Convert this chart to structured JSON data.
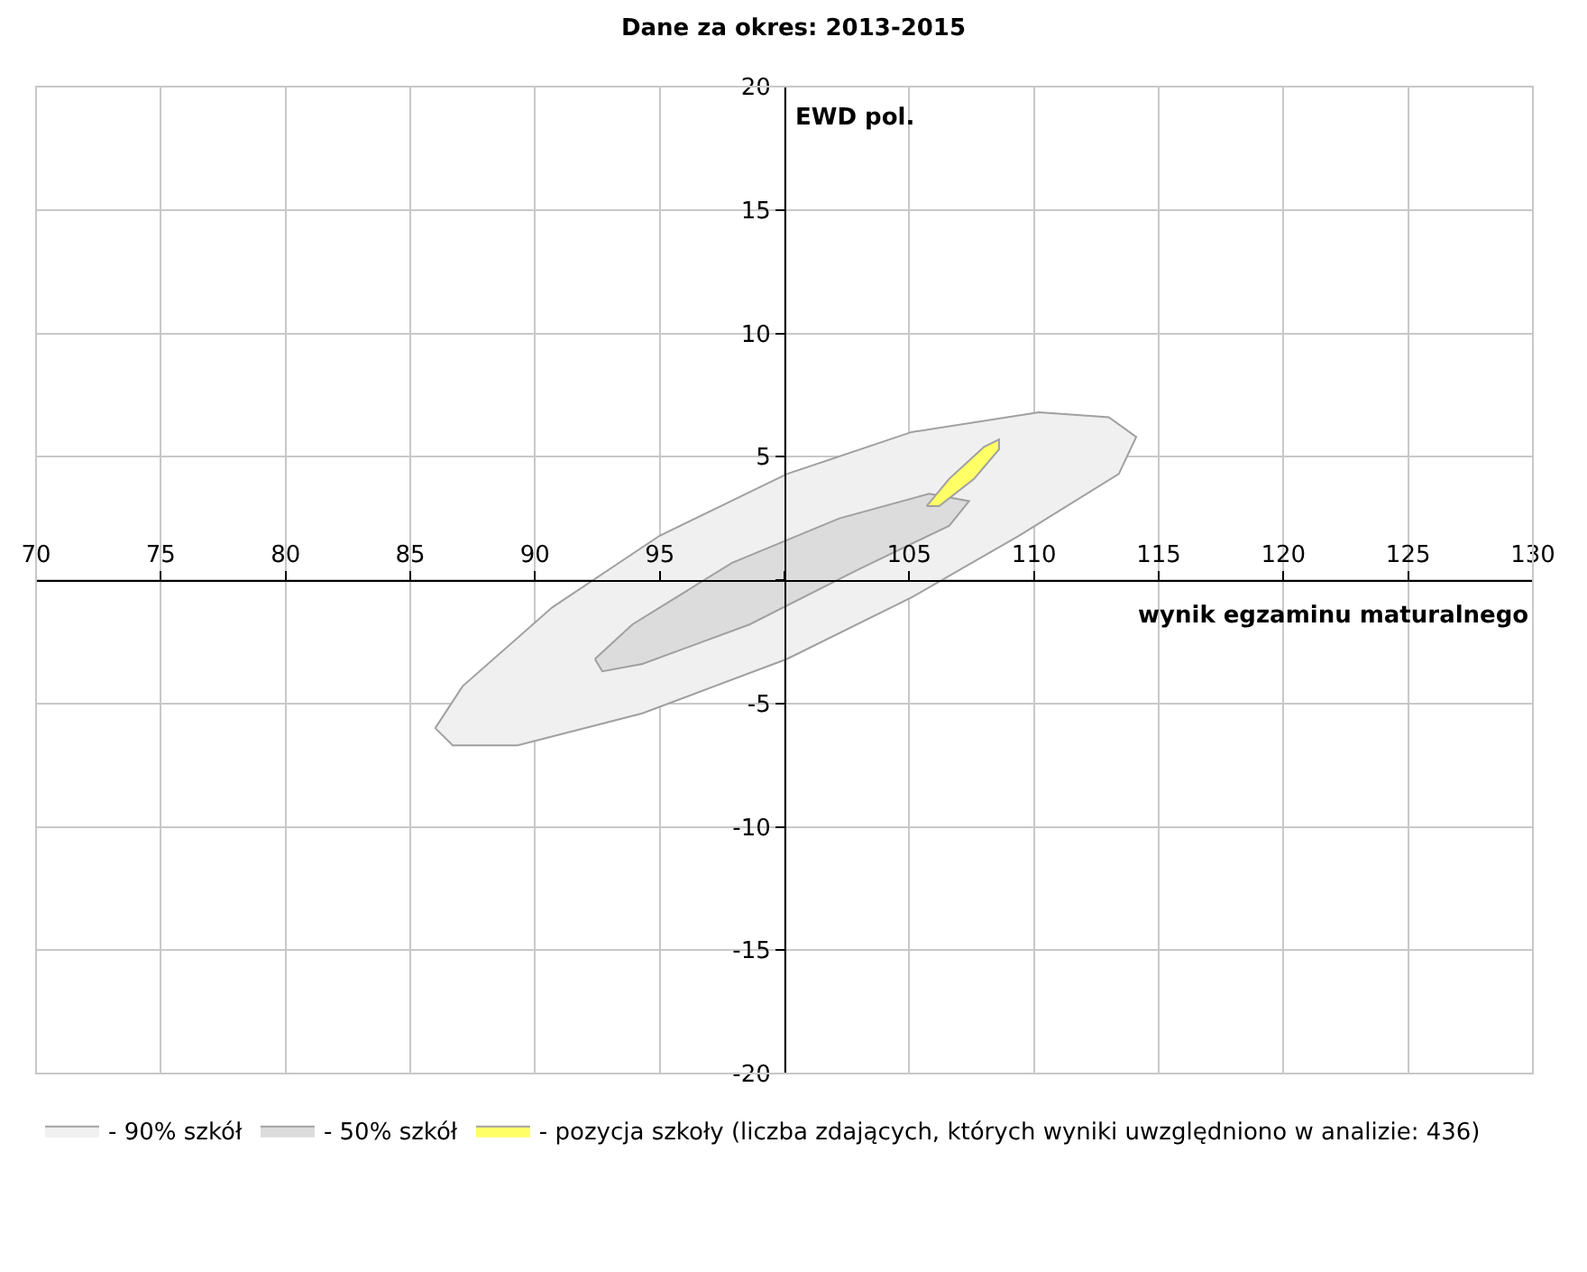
{
  "chart_data": {
    "type": "area",
    "title": "Dane za okres: 2013-2015",
    "xlabel": "wynik egzaminu maturalnego",
    "ylabel": "EWD pol.",
    "xlim": [
      70,
      130
    ],
    "ylim": [
      -20,
      20
    ],
    "xticks": [
      70,
      75,
      80,
      85,
      90,
      95,
      {
        "value": 100,
        "label": null
      },
      105,
      110,
      115,
      120,
      125,
      130
    ],
    "yticks": [
      -20,
      -15,
      -10,
      -5,
      {
        "value": 0,
        "label": null
      },
      5,
      10,
      15,
      20
    ],
    "grid": true,
    "legend": "bottom",
    "series": [
      {
        "name": "- 90% szkół",
        "color": "#f0f0f0",
        "x": [
          86.0,
          87.1,
          90.7,
          95.0,
          100.1,
          105.1,
          110.2,
          113.0,
          114.1,
          113.4,
          109.4,
          105.1,
          100.1,
          94.3,
          89.3,
          86.7,
          86.0
        ],
        "values": [
          -6.0,
          -4.3,
          -1.1,
          1.8,
          4.3,
          6.0,
          6.8,
          6.6,
          5.8,
          4.3,
          1.8,
          -0.7,
          -3.2,
          -5.4,
          -6.7,
          -6.7,
          -6.0
        ]
      },
      {
        "name": "- 50% szkół",
        "color": "#dcdcdc",
        "x": [
          92.4,
          93.9,
          97.9,
          102.2,
          105.8,
          107.4,
          106.6,
          102.9,
          98.6,
          94.3,
          92.7,
          92.4
        ],
        "values": [
          -3.2,
          -1.8,
          0.7,
          2.5,
          3.5,
          3.2,
          2.2,
          0.4,
          -1.8,
          -3.4,
          -3.7,
          -3.2
        ]
      },
      {
        "name": "- pozycja szkoły (liczba zdających, których wyniki uwzględniono w analizie: 436)",
        "color": "#ffff66",
        "x": [
          105.7,
          106.6,
          108.0,
          108.6,
          108.6,
          107.6,
          106.2,
          105.7
        ],
        "values": [
          3.0,
          4.1,
          5.4,
          5.7,
          5.3,
          4.1,
          3.0,
          3.0
        ]
      }
    ]
  }
}
